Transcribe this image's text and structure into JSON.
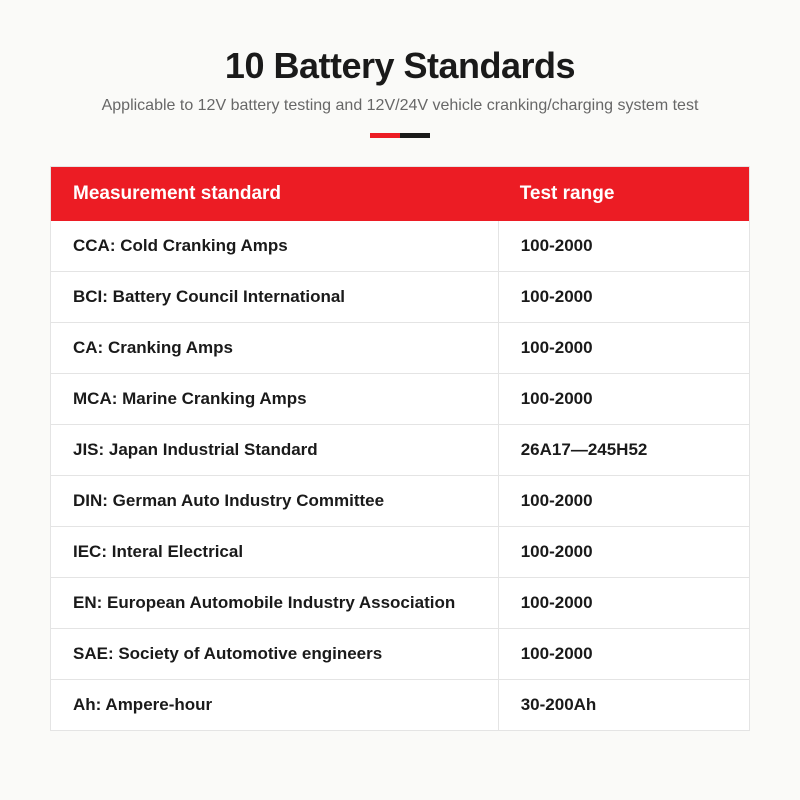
{
  "title": "10 Battery Standards",
  "subtitle": "Applicable to 12V battery testing and 12V/24V vehicle cranking/charging system test",
  "accent_colors": {
    "left": "#ec1c24",
    "right": "#1a1a1a"
  },
  "table": {
    "header_bg": "#ec1c24",
    "header_fg": "#ffffff",
    "border_color": "#e4e4e4",
    "bg": "#ffffff",
    "text_color": "#1a1a1a",
    "columns": [
      {
        "key": "standard",
        "label": "Measurement standard",
        "width_pct": 64
      },
      {
        "key": "range",
        "label": "Test range",
        "width_pct": 36
      }
    ],
    "rows": [
      {
        "standard": "CCA: Cold Cranking Amps",
        "range": "100-2000"
      },
      {
        "standard": "BCI: Battery Council International",
        "range": "100-2000"
      },
      {
        "standard": "CA: Cranking Amps",
        "range": "100-2000"
      },
      {
        "standard": "MCA: Marine Cranking Amps",
        "range": "100-2000"
      },
      {
        "standard": "JIS: Japan Industrial Standard",
        "range": "26A17—245H52"
      },
      {
        "standard": "DIN: German Auto Industry Committee",
        "range": "100-2000"
      },
      {
        "standard": "IEC: Interal Electrical",
        "range": "100-2000"
      },
      {
        "standard": "EN: European Automobile Industry Association",
        "range": "100-2000"
      },
      {
        "standard": "SAE: Society of Automotive engineers",
        "range": "100-2000"
      },
      {
        "standard": "Ah: Ampere-hour",
        "range": "30-200Ah"
      }
    ]
  },
  "page_bg": "#f4f4f2",
  "title_fontsize": 36,
  "subtitle_fontsize": 16,
  "subtitle_color": "#676767",
  "cell_fontsize": 17,
  "header_fontsize": 19
}
